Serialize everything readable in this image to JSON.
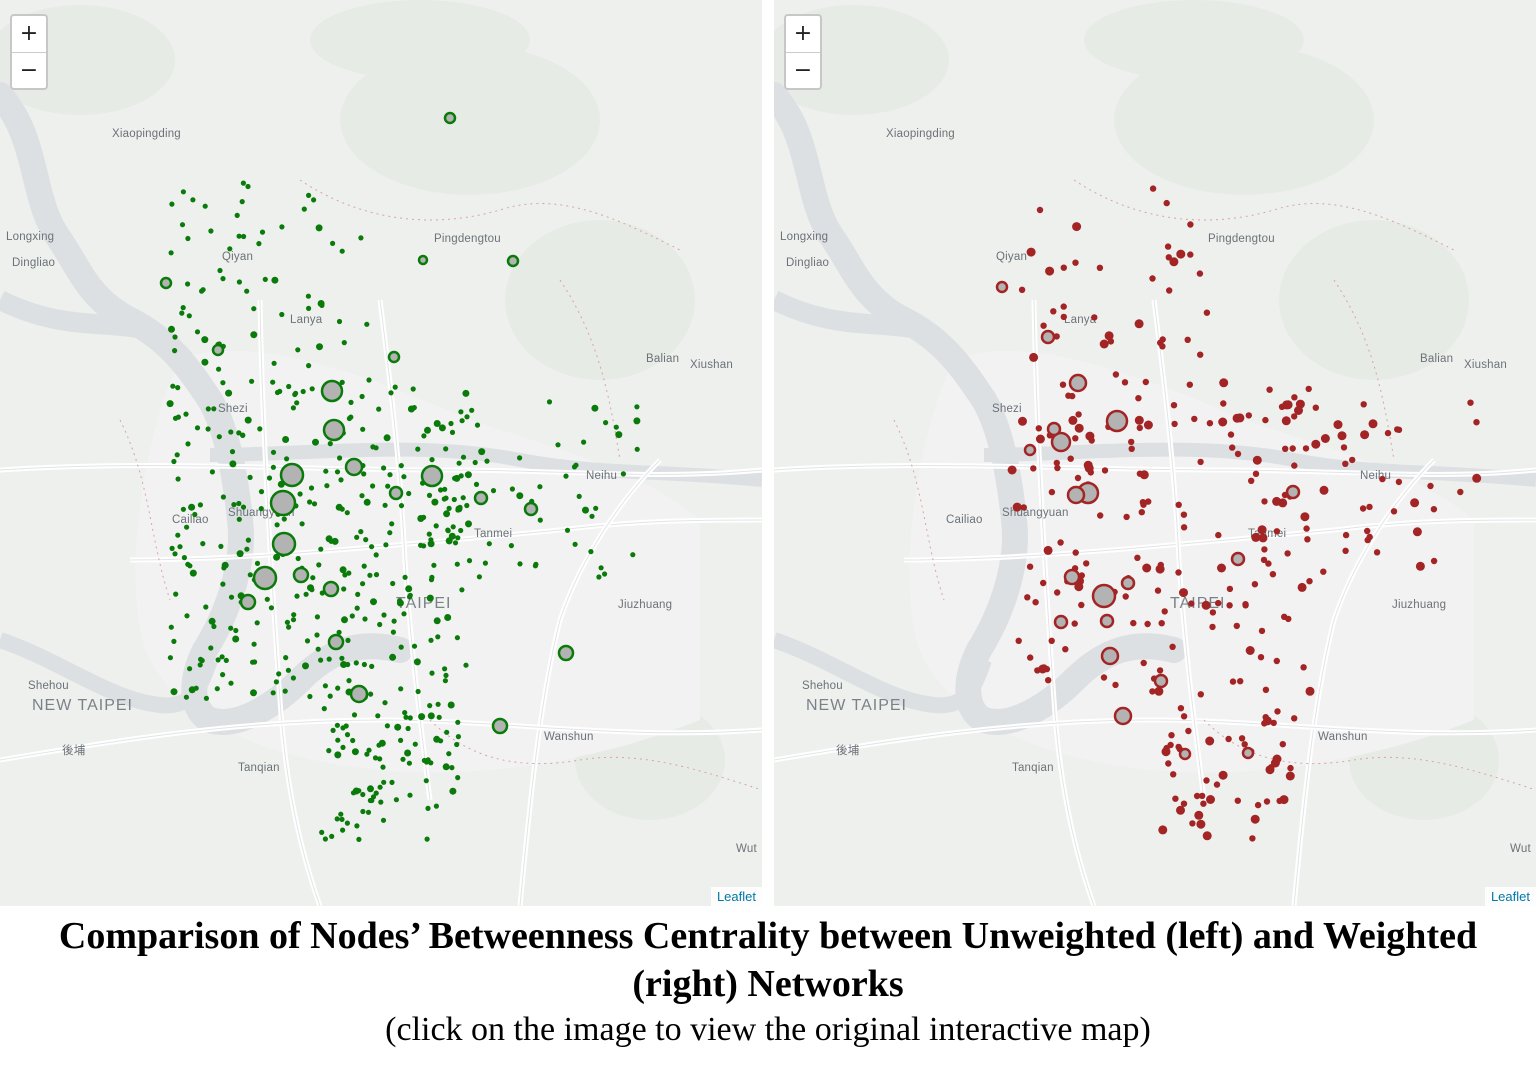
{
  "caption": {
    "title": "Comparison of Nodes’ Betweenness Centrality between Unweighted (left) and Weighted (right) Networks",
    "subtitle": "(click on the image to view the original interactive map)"
  },
  "map_controls": {
    "zoom_in_label": "+",
    "zoom_out_label": "−",
    "attribution": "Leaflet"
  },
  "place_labels": [
    "Xiaopingding",
    "Longxing",
    "Dingliao",
    "Qiyan",
    "Pingdengtou",
    "Lanya",
    "Balian",
    "Xiushan",
    "Shezi",
    "Cailiao",
    "Shuangyuan",
    "Tanmei",
    "TAIPEI",
    "Neihu",
    "Jiuzhuang",
    "Shehou",
    "NEW TAIPEI",
    "後埔",
    "Tanqian",
    "Wanshun",
    "Wut"
  ],
  "maps": {
    "left": {
      "title": "Unweighted network",
      "marker_color": "#0a7a0a",
      "halo_color": "#b3b3b3"
    },
    "right": {
      "title": "Weighted network",
      "marker_color": "#a32424",
      "halo_color": "#b3b3b3"
    }
  }
}
